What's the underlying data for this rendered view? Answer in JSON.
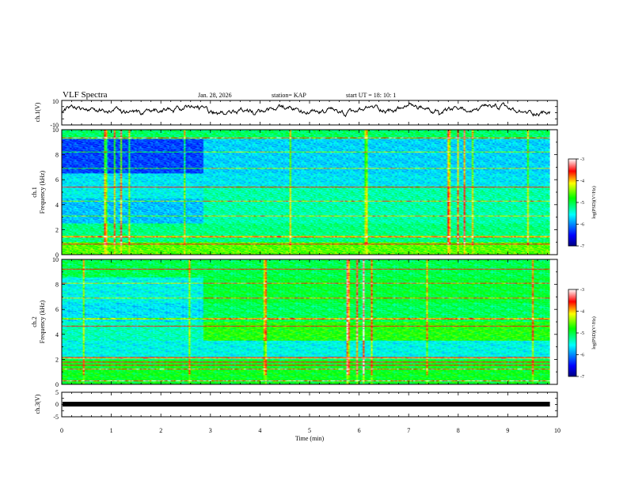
{
  "header": {
    "title": "VLF Spectra",
    "date": "Jan. 28, 2026",
    "station": "station= KAP",
    "start": "start  UT =   18: 10: 1"
  },
  "chart_data": [
    {
      "type": "line",
      "name": "ch1-waveform",
      "ylabel": "ch.1(V)",
      "ylim": [
        -10,
        10
      ],
      "yticks": [
        "10",
        "-10"
      ],
      "xlim": [
        0,
        10
      ],
      "series": [
        {
          "name": "ch.1",
          "color": "#000000",
          "x_range": [
            0,
            9.85
          ],
          "approx_range": [
            -4,
            7
          ]
        }
      ]
    },
    {
      "type": "heatmap",
      "name": "ch1-spectrogram",
      "ylabel_top": "ch.1",
      "ylabel": "Frequency  (kHz)",
      "ylim": [
        0,
        10
      ],
      "yticks": [
        "0",
        "2",
        "4",
        "6",
        "8",
        "10"
      ],
      "xlim": [
        0,
        10
      ],
      "data_x_end": 9.85,
      "colorbar": {
        "label": "log(PSD)(V²/Hz)",
        "range": [
          -7,
          -3
        ],
        "ticks": [
          "-3",
          "-4",
          "-5",
          "-6",
          "-7"
        ],
        "colors": [
          "#000080",
          "#0000ff",
          "#00ffff",
          "#00ff00",
          "#ffff00",
          "#ff0000",
          "#ffffff"
        ]
      }
    },
    {
      "type": "heatmap",
      "name": "ch2-spectrogram",
      "ylabel_top": "ch.2",
      "ylabel": "Frequency  (kHz)",
      "ylim": [
        0,
        10
      ],
      "yticks": [
        "0",
        "2",
        "4",
        "6",
        "8",
        "10"
      ],
      "xlim": [
        0,
        10
      ],
      "data_x_end": 9.85,
      "colorbar": {
        "label": "log(PSD)(V²/Hz)",
        "range": [
          -7,
          -3
        ],
        "ticks": [
          "-3",
          "-4",
          "-5",
          "-6",
          "-7"
        ],
        "colors": [
          "#000080",
          "#0000ff",
          "#00ffff",
          "#00ff00",
          "#ffff00",
          "#ff0000",
          "#ffffff"
        ]
      }
    },
    {
      "type": "line",
      "name": "ch3-waveform",
      "ylabel": "ch.3(V)",
      "ylim": [
        -5,
        5
      ],
      "yticks": [
        "5",
        "0",
        "-5"
      ],
      "xlim": [
        0,
        10
      ],
      "series": [
        {
          "name": "ch.3",
          "color": "#000000",
          "x_range": [
            0,
            9.85
          ],
          "approx_range": [
            -0.5,
            0.5
          ]
        }
      ],
      "xlabel": "Time  (min)",
      "xticks": [
        "0",
        "1",
        "2",
        "3",
        "4",
        "5",
        "6",
        "7",
        "8",
        "9",
        "10"
      ]
    }
  ]
}
